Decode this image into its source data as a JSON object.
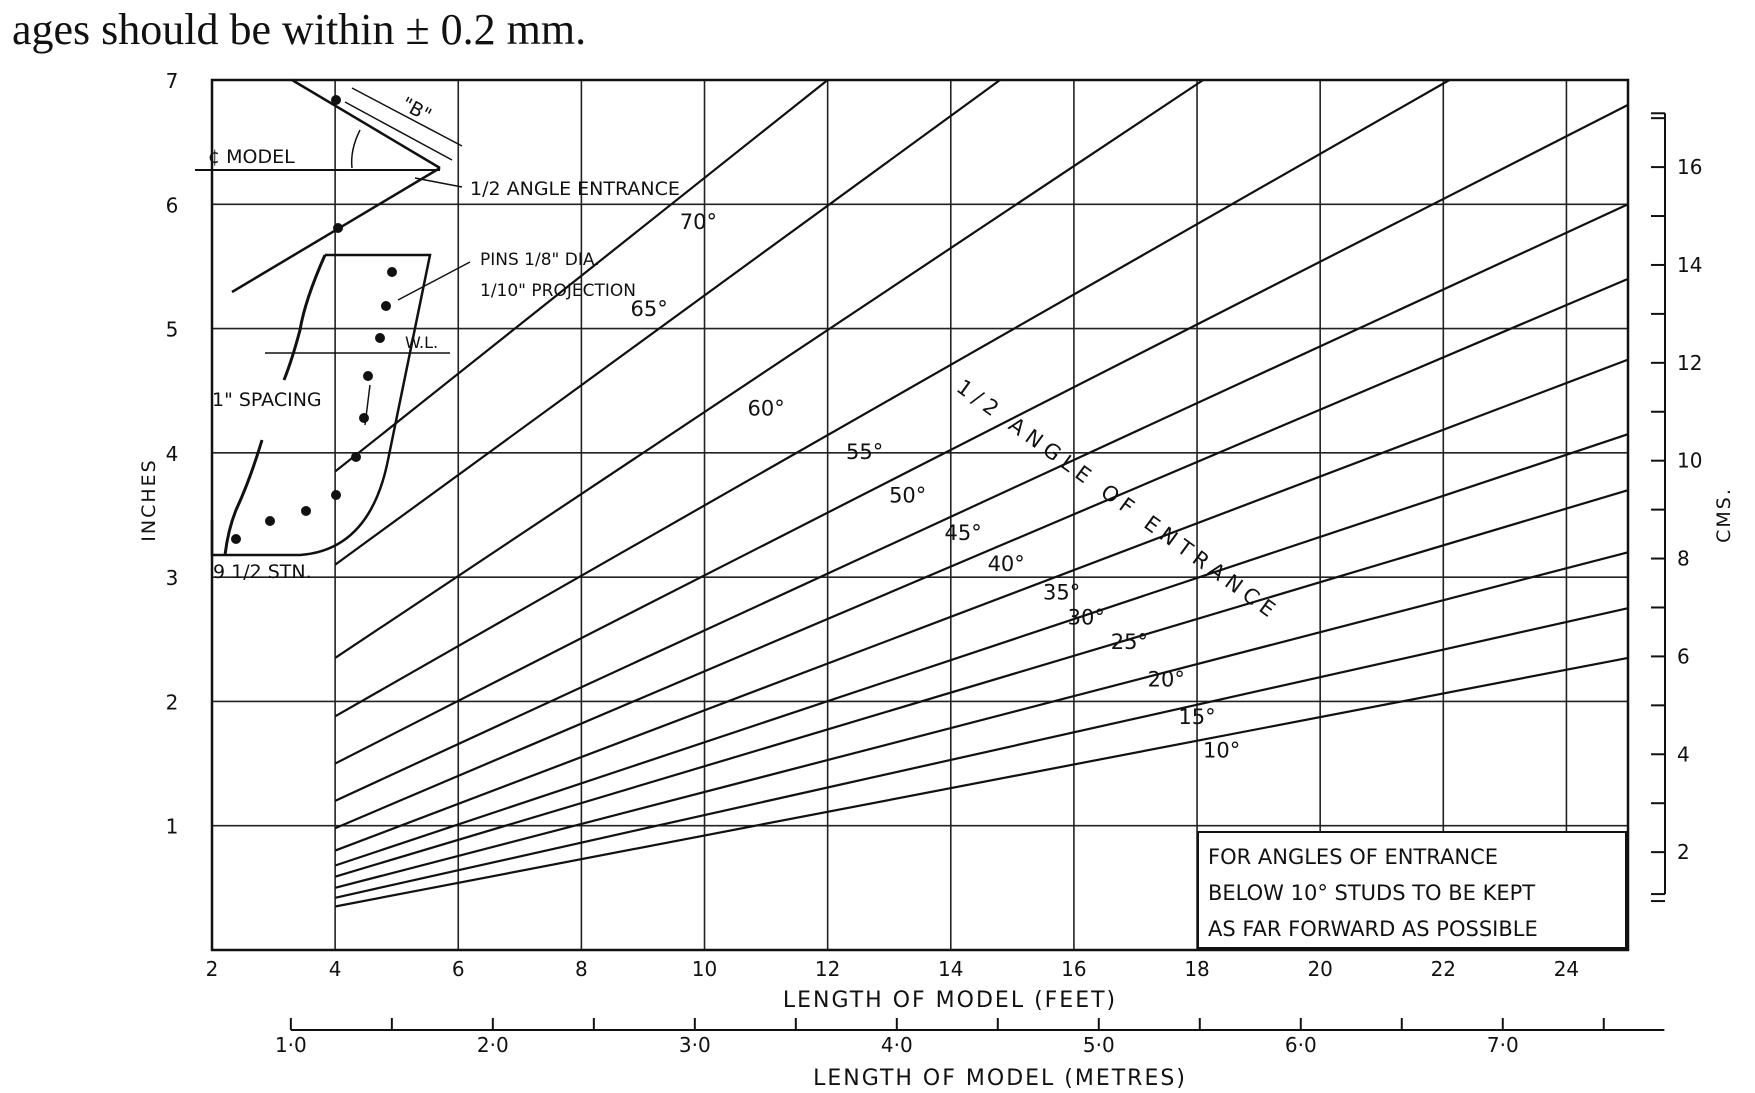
{
  "header": {
    "text": "ages should be within ± 0.2 mm."
  },
  "chart_data": {
    "type": "line",
    "title": "",
    "xlabel": "LENGTH OF MODEL (FEET)",
    "xlabel_secondary": "LENGTH OF MODEL (METRES)",
    "ylabel": "INCHES",
    "ylabel_secondary": "CMS.",
    "curve_family_label": "1/2 ANGLE OF ENTRANCE",
    "xlim": [
      2,
      25
    ],
    "ylim": [
      0,
      7
    ],
    "grid": true,
    "x_ticks": [
      2,
      4,
      6,
      8,
      10,
      12,
      14,
      16,
      18,
      20,
      22,
      24
    ],
    "x_tick_labels": [
      "2",
      "4",
      "6",
      "8",
      "10",
      "12",
      "14",
      "16",
      "18",
      "20",
      "22",
      "24"
    ],
    "y_ticks": [
      1,
      2,
      3,
      4,
      5,
      6,
      7
    ],
    "y_tick_labels": [
      "1",
      "2",
      "3",
      "4",
      "5",
      "6",
      "7"
    ],
    "metres_ticks": [
      1.0,
      2.0,
      3.0,
      4.0,
      5.0,
      6.0,
      7.0
    ],
    "metres_tick_labels": [
      "1·0",
      "2·0",
      "3·0",
      "4·0",
      "5·0",
      "6·0",
      "7·0"
    ],
    "cms_ticks": [
      2,
      4,
      6,
      8,
      10,
      12,
      14,
      16
    ],
    "cms_tick_labels": [
      "2",
      "4",
      "6",
      "8",
      "10",
      "12",
      "14",
      "16"
    ],
    "series": [
      {
        "name": "10°",
        "x": [
          4,
          25
        ],
        "y": [
          0.35,
          2.35
        ]
      },
      {
        "name": "15°",
        "x": [
          4,
          25
        ],
        "y": [
          0.42,
          2.75
        ]
      },
      {
        "name": "20°",
        "x": [
          4,
          25
        ],
        "y": [
          0.5,
          3.2
        ]
      },
      {
        "name": "25°",
        "x": [
          4,
          25
        ],
        "y": [
          0.59,
          3.7
        ]
      },
      {
        "name": "30°",
        "x": [
          4,
          25
        ],
        "y": [
          0.68,
          4.15
        ]
      },
      {
        "name": "35°",
        "x": [
          4,
          25
        ],
        "y": [
          0.8,
          4.75
        ]
      },
      {
        "name": "40°",
        "x": [
          4,
          25
        ],
        "y": [
          0.98,
          5.4
        ]
      },
      {
        "name": "45°",
        "x": [
          4,
          25
        ],
        "y": [
          1.2,
          6.0
        ]
      },
      {
        "name": "50°",
        "x": [
          4,
          25
        ],
        "y": [
          1.5,
          6.8
        ]
      },
      {
        "name": "55°",
        "x": [
          4,
          22.1
        ],
        "y": [
          1.88,
          7.0
        ]
      },
      {
        "name": "60°",
        "x": [
          4,
          18.1
        ],
        "y": [
          2.35,
          7.0
        ]
      },
      {
        "name": "65°",
        "x": [
          4,
          14.8
        ],
        "y": [
          3.1,
          7.0
        ]
      },
      {
        "name": "70°",
        "x": [
          4,
          12.0
        ],
        "y": [
          3.85,
          7.0
        ]
      }
    ],
    "curve_labels": [
      {
        "text": "70°",
        "x": 9.9,
        "y": 5.8
      },
      {
        "text": "65°",
        "x": 9.1,
        "y": 5.1
      },
      {
        "text": "60°",
        "x": 11.0,
        "y": 4.3
      },
      {
        "text": "55°",
        "x": 12.6,
        "y": 3.95
      },
      {
        "text": "50°",
        "x": 13.3,
        "y": 3.6
      },
      {
        "text": "45°",
        "x": 14.2,
        "y": 3.3
      },
      {
        "text": "40°",
        "x": 14.9,
        "y": 3.05
      },
      {
        "text": "35°",
        "x": 15.8,
        "y": 2.82
      },
      {
        "text": "30°",
        "x": 16.2,
        "y": 2.62
      },
      {
        "text": "25°",
        "x": 16.9,
        "y": 2.42
      },
      {
        "text": "20°",
        "x": 17.5,
        "y": 2.12
      },
      {
        "text": "15°",
        "x": 18.0,
        "y": 1.82
      },
      {
        "text": "10°",
        "x": 18.4,
        "y": 1.55
      }
    ],
    "annotations": [
      "¢ MODEL",
      "1/2 ANGLE ENTRANCE",
      "\"B\"",
      "PINS 1/8\" DIA.",
      "1/10\" PROJECTION",
      "W.L.",
      "1\" SPACING",
      "9 1/2 STN."
    ],
    "note_lines": [
      "FOR ANGLES  OF ENTRANCE",
      "BELOW  10°  STUDS  TO  BE  KEPT",
      "AS  FAR  FORWARD  AS  POSSIBLE"
    ]
  }
}
